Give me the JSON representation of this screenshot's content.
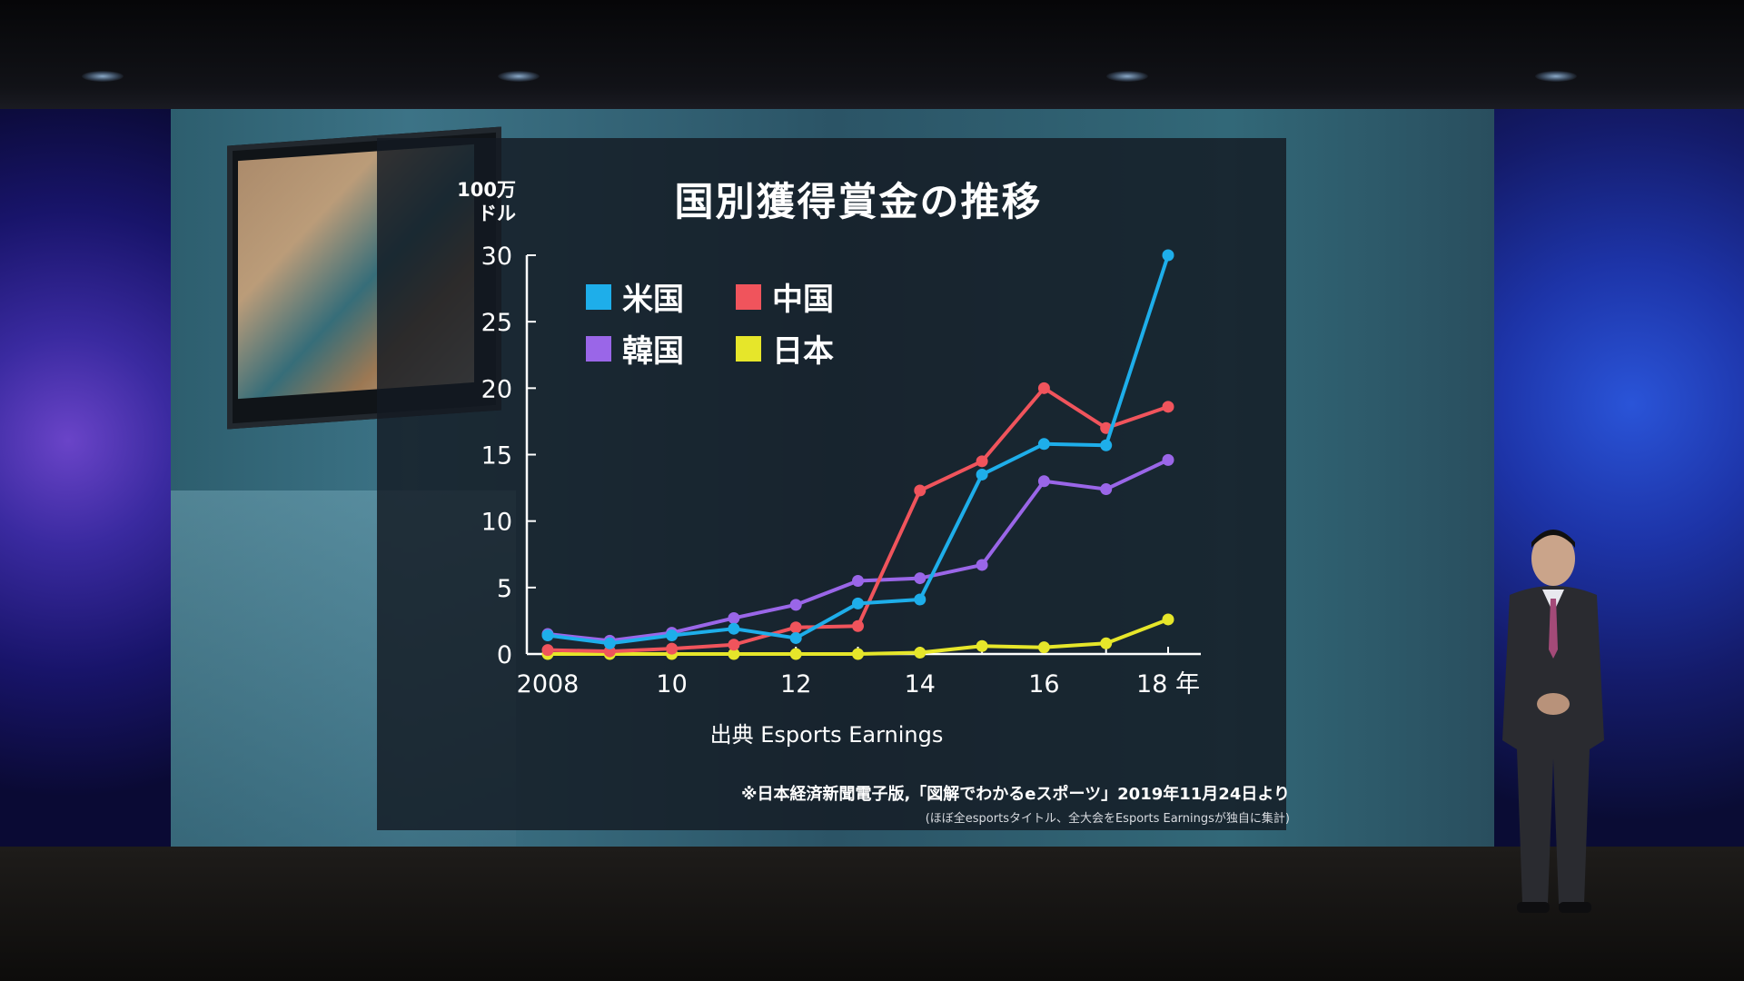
{
  "slide": {
    "title": "国別獲得賞金の推移",
    "unit_line1": "100万",
    "unit_line2": "ドル",
    "source": "出典 Esports Earnings",
    "note_main": "※日本経済新聞電子版,「図解でわかるeスポーツ」2019年11月24日より",
    "note_sub": "(ほぼ全esportsタイトル、全大会をEsports Earningsが独自に集計)"
  },
  "chart_data": {
    "type": "line",
    "title": "国別獲得賞金の推移",
    "ylabel": "100万 ドル",
    "xlabel": "",
    "x": [
      2008,
      2009,
      2010,
      2011,
      2012,
      2013,
      2014,
      2015,
      2016,
      2017,
      2018
    ],
    "x_tick_values": [
      2008,
      2010,
      2012,
      2014,
      2016,
      2018
    ],
    "x_tick_labels": [
      "2008",
      "10",
      "12",
      "14",
      "16",
      "18 年"
    ],
    "ylim": [
      0,
      30
    ],
    "y_ticks": [
      0,
      5,
      10,
      15,
      20,
      25,
      30
    ],
    "grid": false,
    "legend_position": "top-left",
    "series": [
      {
        "name": "米国",
        "color": "#1eaeea",
        "values": [
          1.4,
          0.8,
          1.4,
          1.9,
          1.2,
          3.8,
          4.1,
          13.5,
          15.8,
          15.7,
          30.0
        ]
      },
      {
        "name": "中国",
        "color": "#f0545c",
        "values": [
          0.3,
          0.2,
          0.4,
          0.7,
          2.0,
          2.1,
          12.3,
          14.5,
          20.0,
          17.0,
          18.6
        ]
      },
      {
        "name": "韓国",
        "color": "#9a66e8",
        "values": [
          1.5,
          1.0,
          1.6,
          2.7,
          3.7,
          5.5,
          5.7,
          6.7,
          13.0,
          12.4,
          14.6
        ]
      },
      {
        "name": "日本",
        "color": "#e6e62a",
        "values": [
          0.0,
          0.0,
          0.0,
          0.0,
          0.0,
          0.0,
          0.1,
          0.6,
          0.5,
          0.8,
          2.6
        ]
      }
    ]
  }
}
